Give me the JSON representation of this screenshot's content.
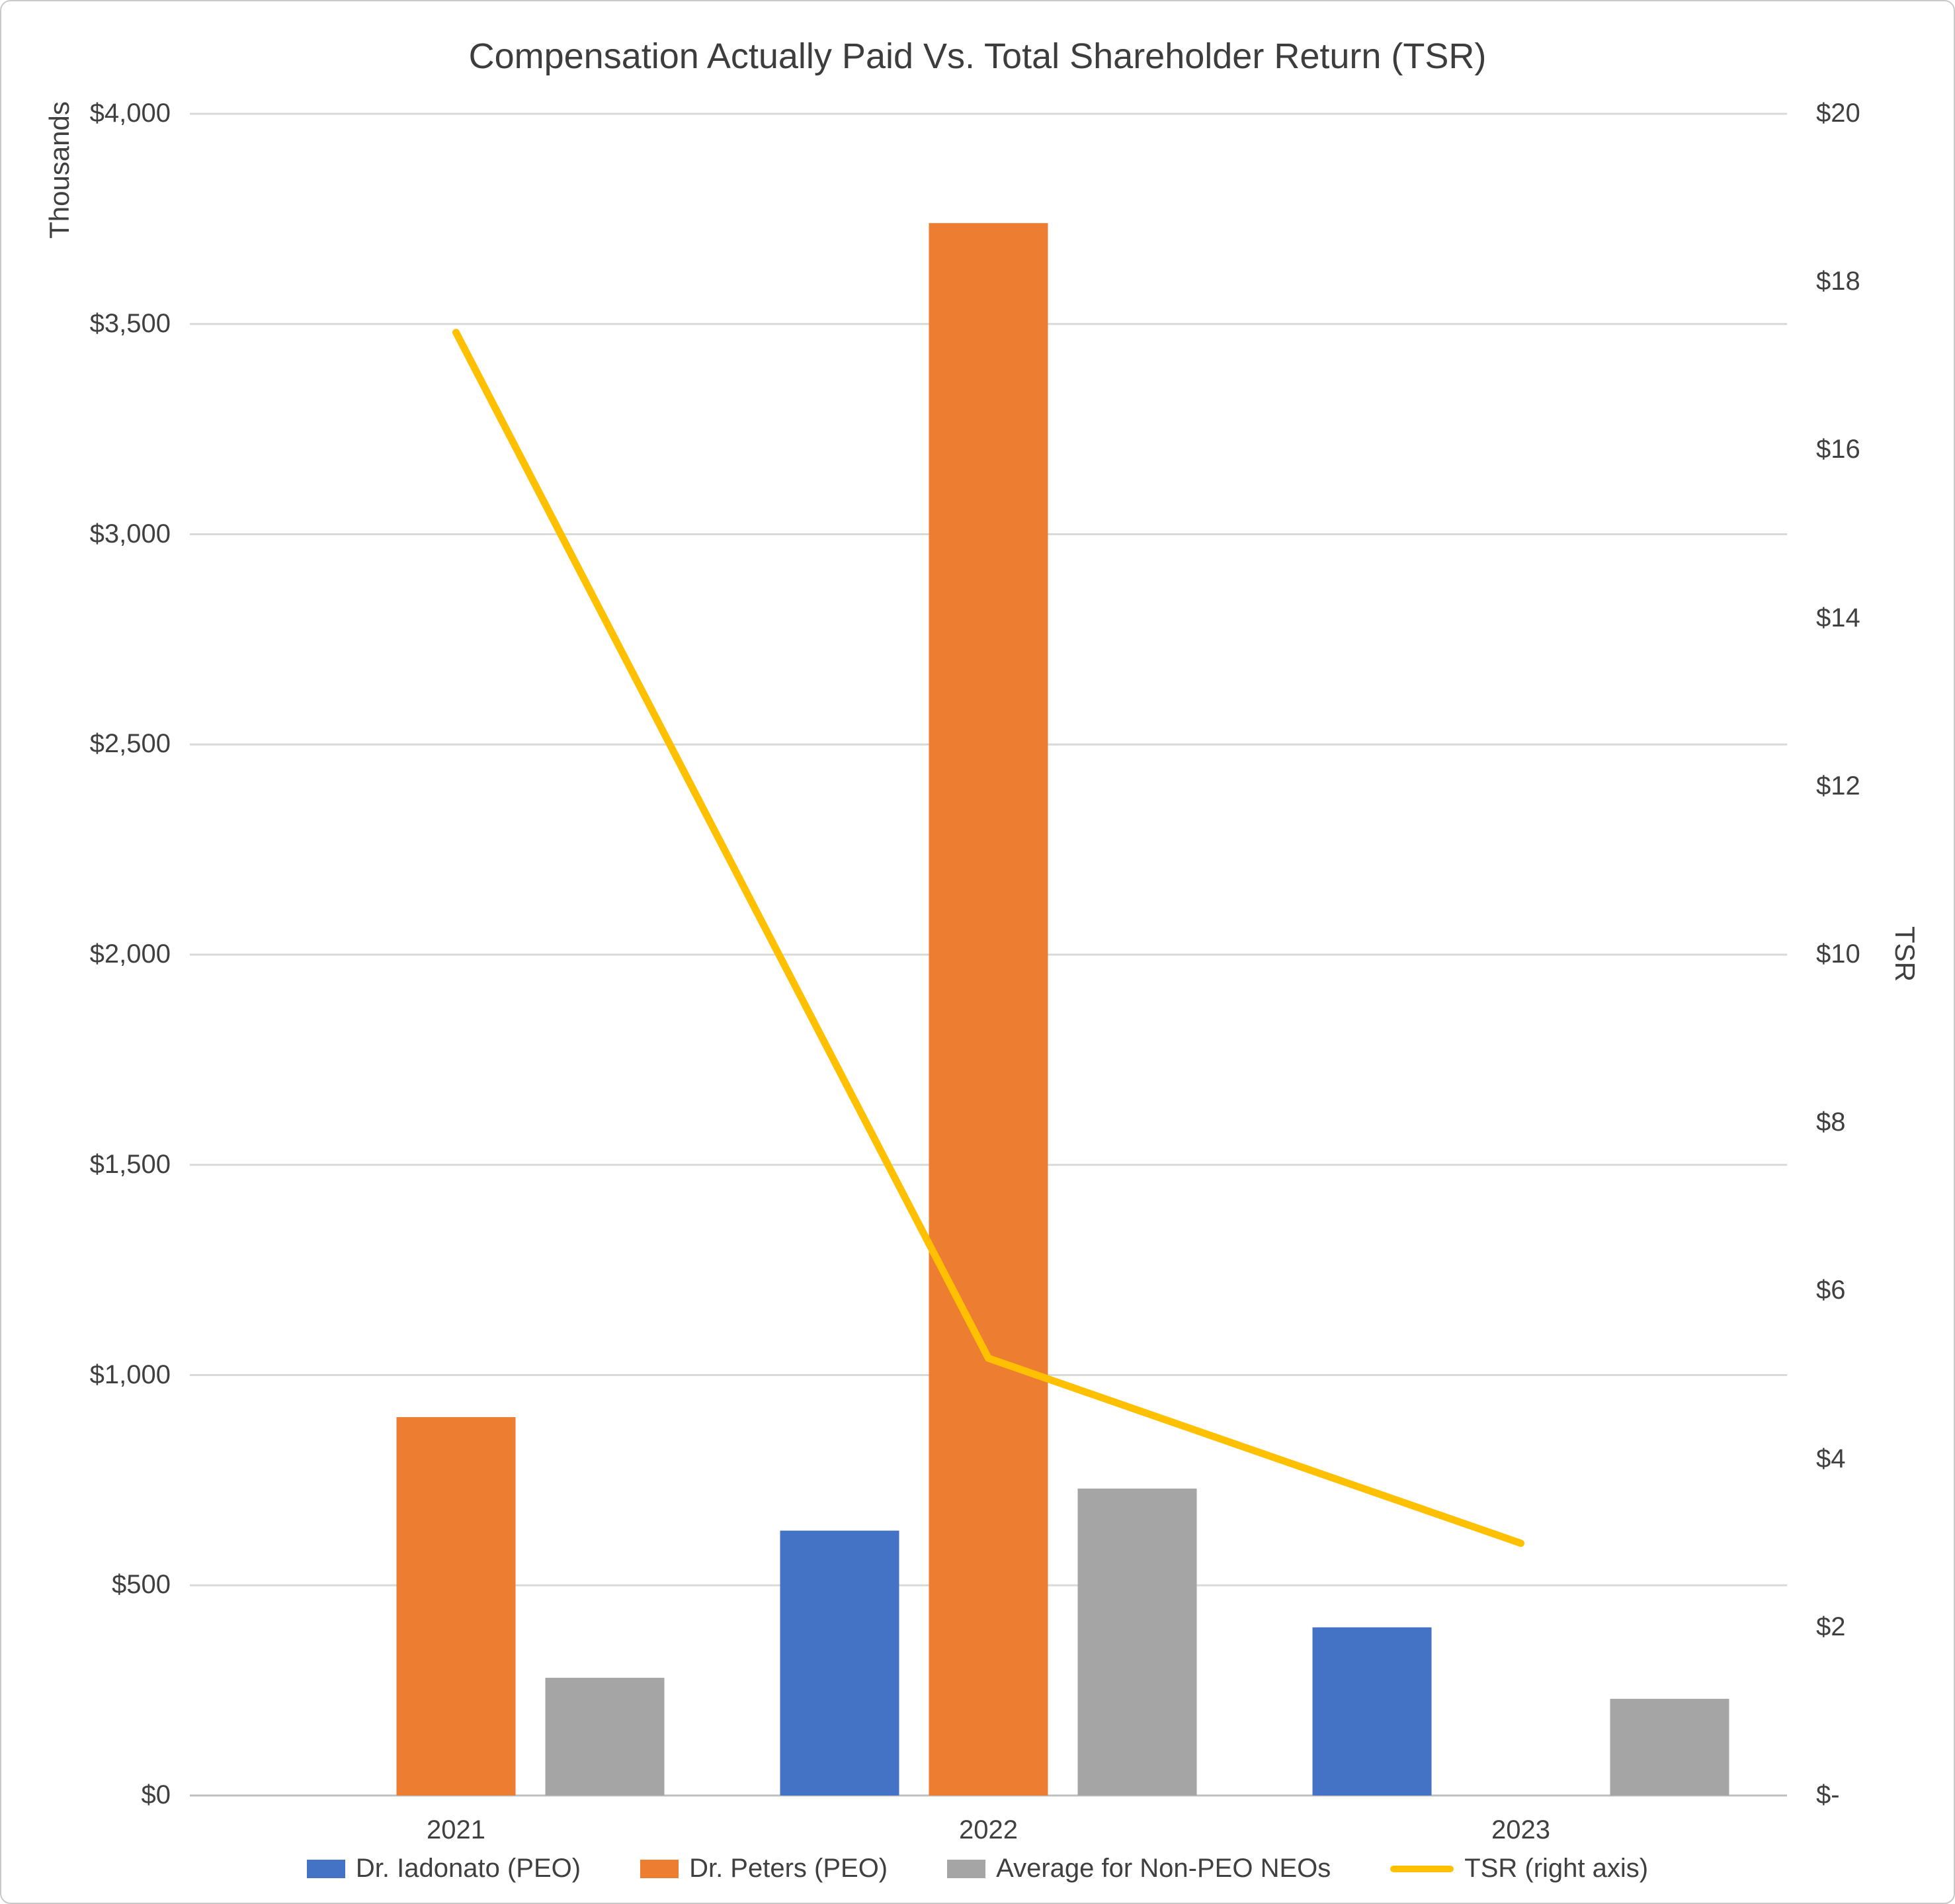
{
  "chart_data": {
    "type": "bar",
    "subtype": "clustered-bar-with-line",
    "title": "Compensation Actually Paid Vs. Total Shareholder Return (TSR)",
    "categories": [
      "2021",
      "2022",
      "2023"
    ],
    "series": [
      {
        "name": "Dr. Iadonato (PEO)",
        "kind": "bar",
        "axis": "left",
        "color": "#4472C4",
        "values": [
          null,
          630,
          400
        ]
      },
      {
        "name": "Dr. Peters (PEO)",
        "kind": "bar",
        "axis": "left",
        "color": "#ED7D31",
        "values": [
          900,
          3740,
          null
        ]
      },
      {
        "name": "Average for Non-PEO NEOs",
        "kind": "bar",
        "axis": "left",
        "color": "#A5A5A5",
        "values": [
          280,
          730,
          230
        ]
      },
      {
        "name": "TSR (right axis)",
        "kind": "line",
        "axis": "right",
        "color": "#FFC000",
        "values": [
          17.4,
          5.2,
          3.0
        ]
      }
    ],
    "left_axis": {
      "title": "Thousands",
      "min": 0,
      "max": 4000,
      "step": 500,
      "tick_labels": [
        "$0",
        "$500",
        "$1,000",
        "$1,500",
        "$2,000",
        "$2,500",
        "$3,000",
        "$3,500",
        "$4,000"
      ]
    },
    "right_axis": {
      "title": "TSR",
      "min": 0,
      "max": 20,
      "step": 2,
      "tick_labels": [
        "$-",
        "$2",
        "$4",
        "$6",
        "$8",
        "$10",
        "$12",
        "$14",
        "$16",
        "$18",
        "$20"
      ]
    },
    "grid": true,
    "legend_position": "bottom",
    "legend": [
      {
        "label": "Dr. Iadonato (PEO)",
        "color": "#4472C4",
        "marker": "bar"
      },
      {
        "label": "Dr. Peters (PEO)",
        "color": "#ED7D31",
        "marker": "bar"
      },
      {
        "label": "Average for Non-PEO NEOs",
        "color": "#A5A5A5",
        "marker": "bar"
      },
      {
        "label": "TSR (right axis)",
        "color": "#FFC000",
        "marker": "line"
      }
    ],
    "colors": {
      "gridline": "#D9D9D9",
      "axis_line": "#BFBFBF",
      "text": "#404040",
      "background": "#FFFFFF"
    }
  }
}
